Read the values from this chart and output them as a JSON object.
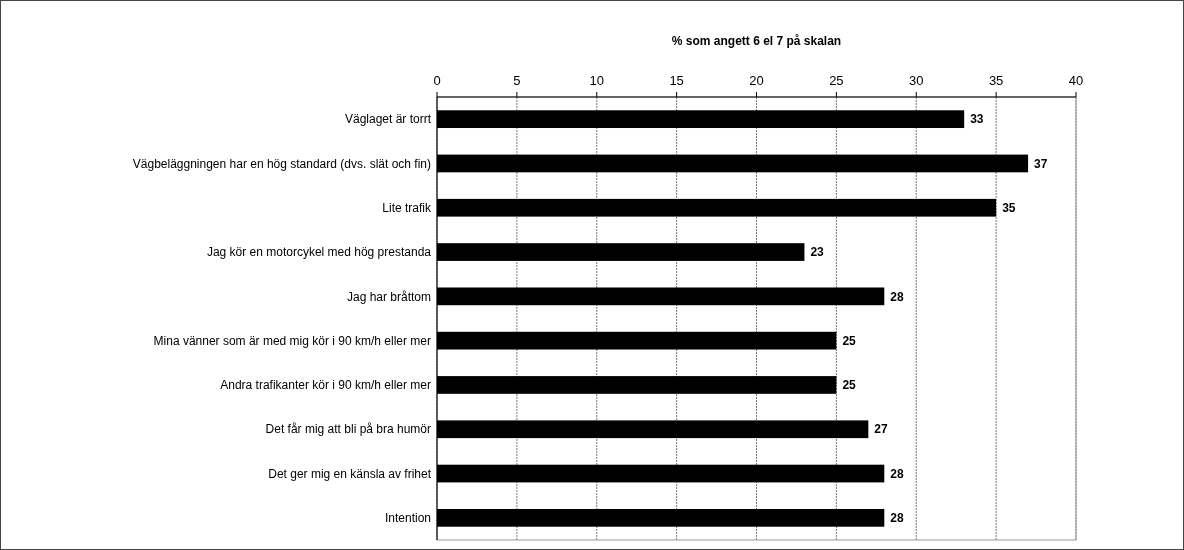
{
  "chart_data": {
    "type": "bar",
    "orientation": "horizontal",
    "xlabel": "% som angett 6 el 7 på skalan",
    "categories": [
      "Väglaget är torrt",
      "Vägbeläggningen har en hög standard (dvs. slät och fin)",
      "Lite trafik",
      "Jag kör en motorcykel med hög prestanda",
      "Jag har bråttom",
      "Mina vänner som är med mig kör i 90 km/h eller mer",
      "Andra trafikanter kör i 90 km/h eller mer",
      "Det får mig att bli på bra humör",
      "Det ger mig en känsla av frihet",
      "Intention"
    ],
    "values": [
      33,
      37,
      35,
      23,
      28,
      25,
      25,
      27,
      28,
      28
    ],
    "color": "#000000",
    "data_labels": true,
    "xlim": [
      0,
      40
    ],
    "xticks": [
      0,
      5,
      10,
      15,
      20,
      25,
      30,
      35,
      40
    ],
    "grid": "x"
  }
}
